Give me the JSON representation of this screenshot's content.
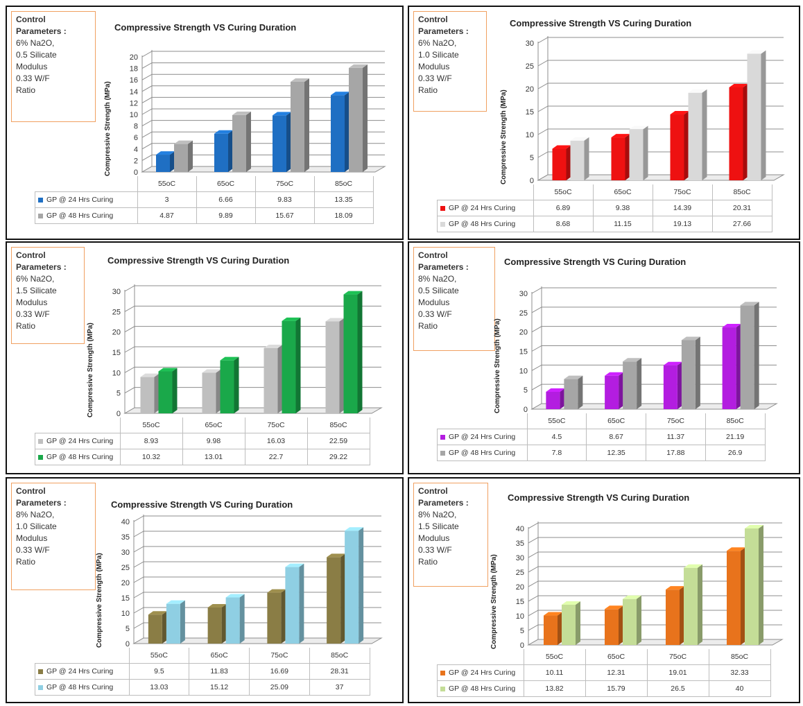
{
  "panels": [
    {
      "params": [
        "Control",
        "Parameters :",
        "6% Na2O,",
        "0.5 Silicate",
        "Modulus",
        "0.33 W/F",
        "Ratio"
      ],
      "chart_data": {
        "type": "bar",
        "title": "Compressive Strength VS Curing Duration",
        "ylabel": "Compressive Strength (MPa)",
        "categories": [
          "55oC",
          "65oC",
          "75oC",
          "85oC"
        ],
        "ylim": [
          0,
          20
        ],
        "yticks": [
          "0",
          "2",
          "4",
          "6",
          "8",
          "10",
          "12",
          "14",
          "16",
          "18",
          "20"
        ],
        "series": [
          {
            "name": "GP @ 24 Hrs Curing",
            "color": "#1f6fc3",
            "values": [
              3,
              6.66,
              9.83,
              13.35
            ],
            "labels": [
              "3",
              "6.66",
              "9.83",
              "13.35"
            ]
          },
          {
            "name": "GP @ 48 Hrs Curing",
            "color": "#a6a6a6",
            "values": [
              4.87,
              9.89,
              15.67,
              18.09
            ],
            "labels": [
              "4.87",
              "9.89",
              "15.67",
              "18.09"
            ]
          }
        ]
      }
    },
    {
      "params": [
        "Control",
        "Parameters :",
        "6% Na2O,",
        "1.0 Silicate",
        "Modulus",
        "0.33 W/F",
        "Ratio"
      ],
      "chart_data": {
        "type": "bar",
        "title": "Compressive Strength VS Curing Duration",
        "ylabel": "Compressive Strength (MPa)",
        "categories": [
          "55oC",
          "65oC",
          "75oC",
          "85oC"
        ],
        "ylim": [
          0,
          30
        ],
        "yticks": [
          "0",
          "5",
          "10",
          "15",
          "20",
          "25",
          "30"
        ],
        "series": [
          {
            "name": "GP @ 24 Hrs Curing",
            "color": "#ee1111",
            "values": [
              6.89,
              9.38,
              14.39,
              20.31
            ],
            "labels": [
              "6.89",
              "9.38",
              "14.39",
              "20.31"
            ]
          },
          {
            "name": "GP @ 48 Hrs Curing",
            "color": "#d9d9d9",
            "values": [
              8.68,
              11.15,
              19.13,
              27.66
            ],
            "labels": [
              "8.68",
              "11.15",
              "19.13",
              "27.66"
            ]
          }
        ]
      }
    },
    {
      "params": [
        "Control",
        "Parameters :",
        "6% Na2O,",
        "1.5 Silicate",
        "Modulus",
        "0.33 W/F",
        "Ratio"
      ],
      "chart_data": {
        "type": "bar",
        "title": "Compressive Strength VS Curing Duration",
        "ylabel": "Compressive Strength (MPa)",
        "categories": [
          "55oC",
          "65oC",
          "75oC",
          "85oC"
        ],
        "ylim": [
          0,
          30
        ],
        "yticks": [
          "0",
          "5",
          "10",
          "15",
          "20",
          "25",
          "30"
        ],
        "series": [
          {
            "name": "GP @ 24 Hrs Curing",
            "color": "#bfbfbf",
            "values": [
              8.93,
              9.98,
              16.03,
              22.59
            ],
            "labels": [
              "8.93",
              "9.98",
              "16.03",
              "22.59"
            ]
          },
          {
            "name": "GP @ 48 Hrs Curing",
            "color": "#1aa84a",
            "values": [
              10.32,
              13.01,
              22.7,
              29.22
            ],
            "labels": [
              "10.32",
              "13.01",
              "22.7",
              "29.22"
            ]
          }
        ]
      }
    },
    {
      "params": [
        "Control",
        "Parameters :",
        "8% Na2O,",
        "0.5 Silicate",
        "Modulus",
        "0.33 W/F",
        "Ratio"
      ],
      "chart_data": {
        "type": "bar",
        "title": "Compressive Strength VS Curing Duration",
        "ylabel": "Compressive Strength (MPa)",
        "categories": [
          "55oC",
          "65oC",
          "75oC",
          "85oC"
        ],
        "ylim": [
          0,
          30
        ],
        "yticks": [
          "0",
          "5",
          "10",
          "15",
          "20",
          "25",
          "30"
        ],
        "series": [
          {
            "name": "GP @ 24 Hrs Curing",
            "color": "#b31de0",
            "values": [
              4.5,
              8.67,
              11.37,
              21.19
            ],
            "labels": [
              "4.5",
              "8.67",
              "11.37",
              "21.19"
            ]
          },
          {
            "name": "GP @ 48 Hrs Curing",
            "color": "#a6a6a6",
            "values": [
              7.8,
              12.35,
              17.88,
              26.9
            ],
            "labels": [
              "7.8",
              "12.35",
              "17.88",
              "26.9"
            ]
          }
        ]
      }
    },
    {
      "params": [
        "Control",
        "Parameters :",
        "8% Na2O,",
        "1.0 Silicate",
        "Modulus",
        "0.33 W/F",
        "Ratio"
      ],
      "chart_data": {
        "type": "bar",
        "title": "Compressive Strength VS Curing Duration",
        "ylabel": "Compressive Strength (MPa)",
        "categories": [
          "55oC",
          "65oC",
          "75oC",
          "85oC"
        ],
        "ylim": [
          0,
          40
        ],
        "yticks": [
          "0",
          "5",
          "10",
          "15",
          "20",
          "25",
          "30",
          "35",
          "40"
        ],
        "series": [
          {
            "name": "GP @ 24 Hrs Curing",
            "color": "#8a7d45",
            "values": [
              9.5,
              11.83,
              16.69,
              28.31
            ],
            "labels": [
              "9.5",
              "11.83",
              "16.69",
              "28.31"
            ]
          },
          {
            "name": "GP @ 48 Hrs Curing",
            "color": "#8fcfe3",
            "values": [
              13.03,
              15.12,
              25.09,
              37
            ],
            "labels": [
              "13.03",
              "15.12",
              "25.09",
              "37"
            ]
          }
        ]
      }
    },
    {
      "params": [
        "Control",
        "Parameters :",
        "8% Na2O,",
        "1.5 Silicate",
        "Modulus",
        "0.33 W/F",
        "Ratio"
      ],
      "chart_data": {
        "type": "bar",
        "title": "Compressive Strength VS Curing Duration",
        "ylabel": "Compressive Strength (MPa)",
        "categories": [
          "55oC",
          "65oC",
          "75oC",
          "85oC"
        ],
        "ylim": [
          0,
          40
        ],
        "yticks": [
          "0",
          "5",
          "10",
          "15",
          "20",
          "25",
          "30",
          "35",
          "40"
        ],
        "series": [
          {
            "name": "GP @ 24 Hrs Curing",
            "color": "#e8731c",
            "values": [
              10.11,
              12.31,
              19.01,
              32.33
            ],
            "labels": [
              "10.11",
              "12.31",
              "19.01",
              "32.33"
            ]
          },
          {
            "name": "GP @ 48 Hrs Curing",
            "color": "#c4dd97",
            "values": [
              13.82,
              15.79,
              26.5,
              40
            ],
            "labels": [
              "13.82",
              "15.79",
              "26.5",
              "40"
            ]
          }
        ]
      }
    }
  ]
}
